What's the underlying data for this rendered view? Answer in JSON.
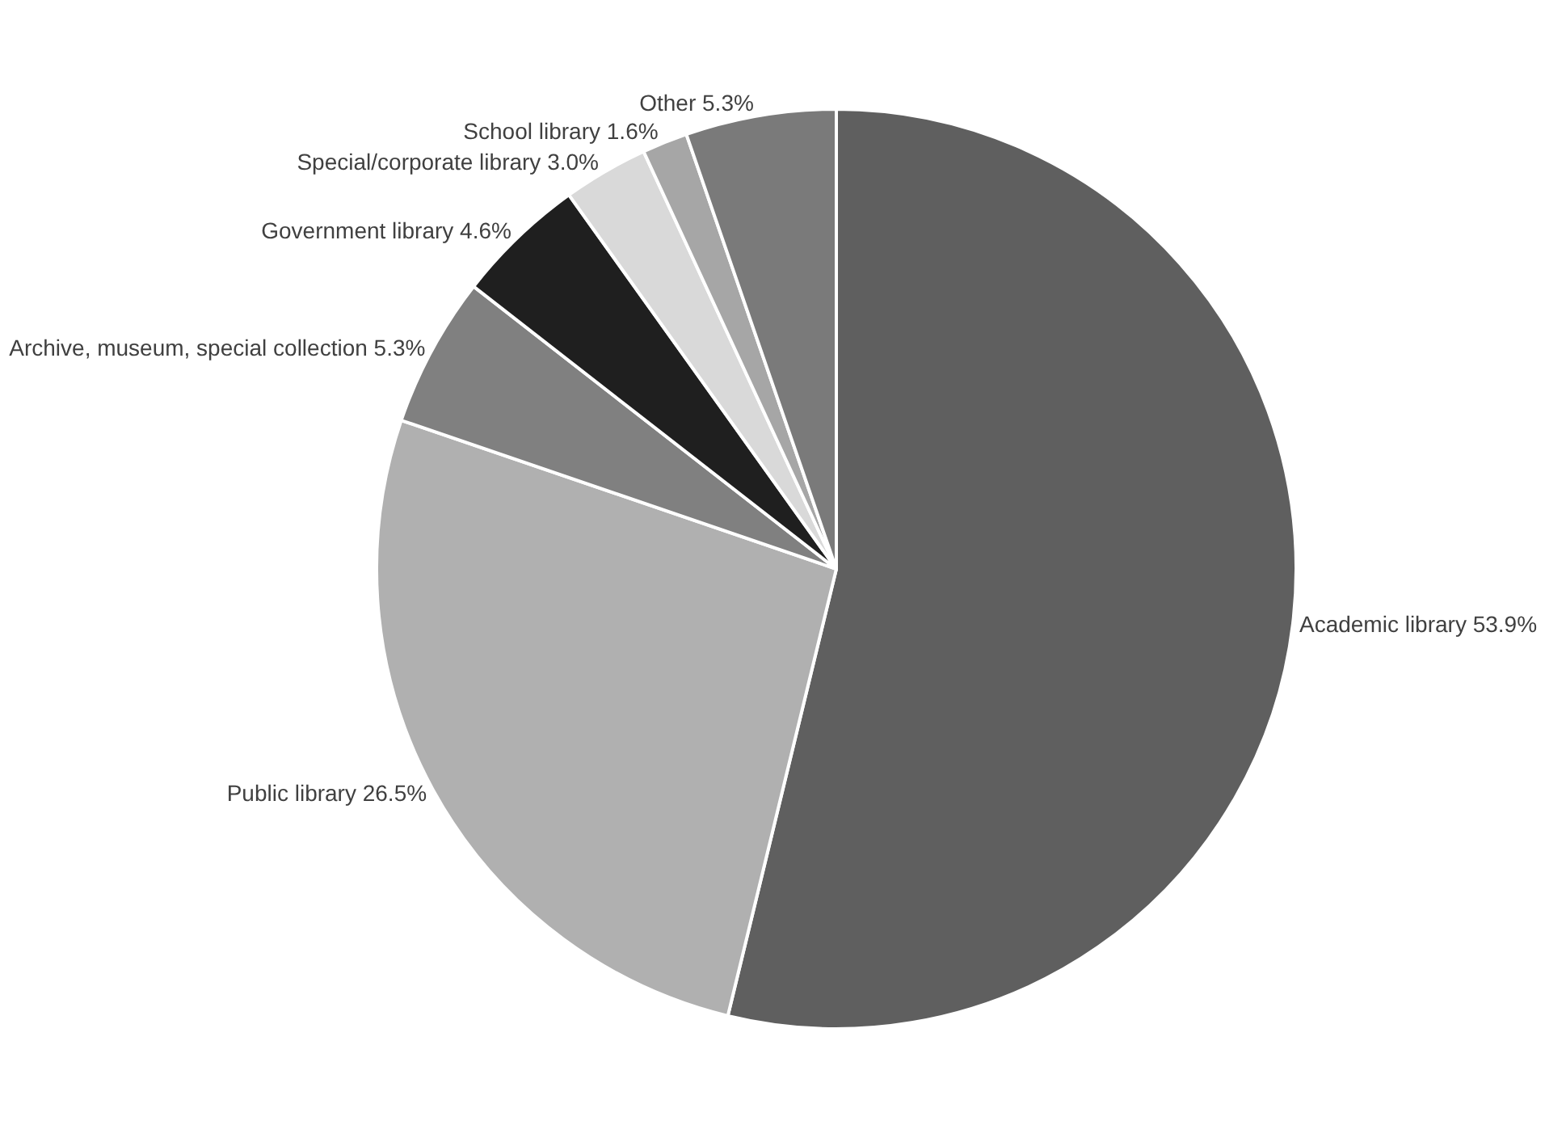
{
  "chart_data": {
    "type": "pie",
    "categories": [
      "Academic library",
      "Public library",
      "Archive, museum, special collection",
      "Government library",
      "Special/corporate library",
      "School library",
      "Other"
    ],
    "values": [
      53.9,
      26.5,
      5.3,
      4.6,
      3.0,
      1.6,
      5.3
    ],
    "value_labels": [
      "53.9%",
      "26.5%",
      "5.3%",
      "4.6%",
      "3.0%",
      "1.6%",
      "5.3%"
    ],
    "colors": [
      "#5f5f5f",
      "#b0b0b0",
      "#808080",
      "#1f1f1f",
      "#d9d9d9",
      "#a6a6a6",
      "#7a7a7a"
    ],
    "legend": false
  }
}
